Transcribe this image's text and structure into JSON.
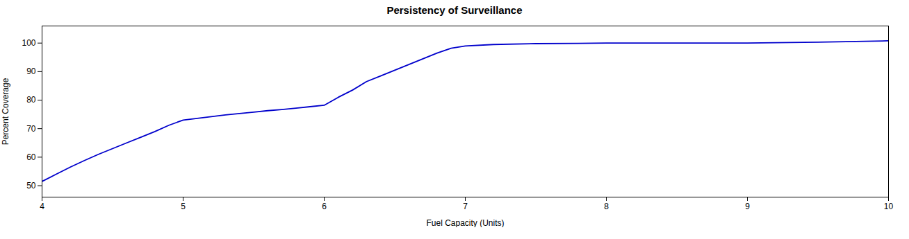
{
  "chart_data": {
    "type": "line",
    "title": "Persistency of Surveillance",
    "xlabel": "Fuel Capacity (Units)",
    "ylabel": "Percent Coverage",
    "x": [
      4.0,
      4.1,
      4.2,
      4.3,
      4.4,
      4.5,
      4.6,
      4.7,
      4.8,
      4.9,
      5.0,
      5.1,
      5.2,
      5.3,
      5.4,
      5.5,
      5.6,
      5.7,
      5.8,
      5.9,
      6.0,
      6.1,
      6.2,
      6.3,
      6.4,
      6.5,
      6.6,
      6.7,
      6.8,
      6.9,
      7.0,
      7.2,
      7.5,
      7.8,
      8.0,
      8.5,
      9.0,
      9.5,
      10.0
    ],
    "values": [
      51.5,
      54.0,
      56.5,
      58.8,
      61.0,
      63.0,
      65.0,
      67.0,
      69.0,
      71.2,
      73.0,
      73.6,
      74.2,
      74.8,
      75.3,
      75.8,
      76.3,
      76.7,
      77.2,
      77.7,
      78.2,
      81.0,
      83.5,
      86.5,
      88.5,
      90.5,
      92.5,
      94.5,
      96.5,
      98.2,
      99.0,
      99.5,
      99.8,
      99.9,
      100.0,
      100.0,
      100.0,
      100.3,
      100.8
    ],
    "color": "#0000CC",
    "xlim": [
      4,
      10
    ],
    "ylim": [
      46,
      106
    ],
    "xticks": [
      4,
      5,
      6,
      7,
      8,
      9,
      10
    ],
    "yticks": [
      50,
      60,
      70,
      80,
      90,
      100
    ],
    "grid": false
  }
}
